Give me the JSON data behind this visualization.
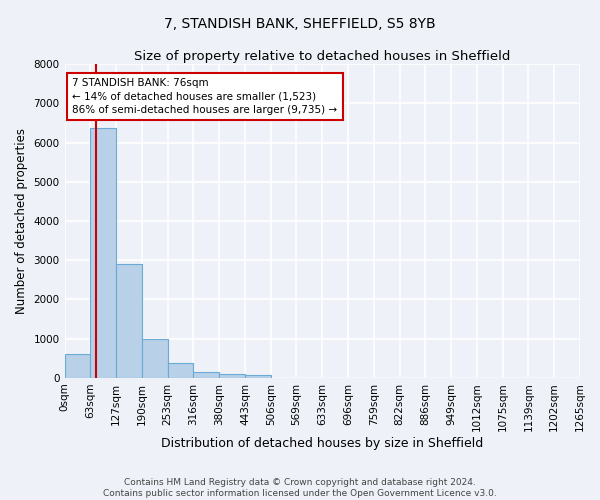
{
  "title": "7, STANDISH BANK, SHEFFIELD, S5 8YB",
  "subtitle": "Size of property relative to detached houses in Sheffield",
  "xlabel": "Distribution of detached houses by size in Sheffield",
  "ylabel": "Number of detached properties",
  "bar_values": [
    620,
    6380,
    2900,
    990,
    370,
    160,
    100,
    85,
    0,
    0,
    0,
    0,
    0,
    0,
    0,
    0,
    0,
    0,
    0,
    0
  ],
  "bar_labels": [
    "0sqm",
    "63sqm",
    "127sqm",
    "190sqm",
    "253sqm",
    "316sqm",
    "380sqm",
    "443sqm",
    "506sqm",
    "569sqm",
    "633sqm",
    "696sqm",
    "759sqm",
    "822sqm",
    "886sqm",
    "949sqm",
    "1012sqm",
    "1075sqm",
    "1139sqm",
    "1202sqm",
    "1265sqm"
  ],
  "bar_color": "#b8d0e8",
  "bar_edge_color": "#6aaad4",
  "property_line_color": "#cc0000",
  "annotation_text": "7 STANDISH BANK: 76sqm\n← 14% of detached houses are smaller (1,523)\n86% of semi-detached houses are larger (9,735) →",
  "annotation_box_color": "#ffffff",
  "annotation_box_edge_color": "#cc0000",
  "ylim": [
    0,
    8000
  ],
  "yticks": [
    0,
    1000,
    2000,
    3000,
    4000,
    5000,
    6000,
    7000,
    8000
  ],
  "footer_line1": "Contains HM Land Registry data © Crown copyright and database right 2024.",
  "footer_line2": "Contains public sector information licensed under the Open Government Licence v3.0.",
  "bg_color": "#eef2f8",
  "grid_color": "#ffffff",
  "title_fontsize": 10,
  "subtitle_fontsize": 9.5,
  "xlabel_fontsize": 9,
  "ylabel_fontsize": 8.5,
  "tick_fontsize": 7.5,
  "annotation_fontsize": 7.5,
  "footer_fontsize": 6.5
}
